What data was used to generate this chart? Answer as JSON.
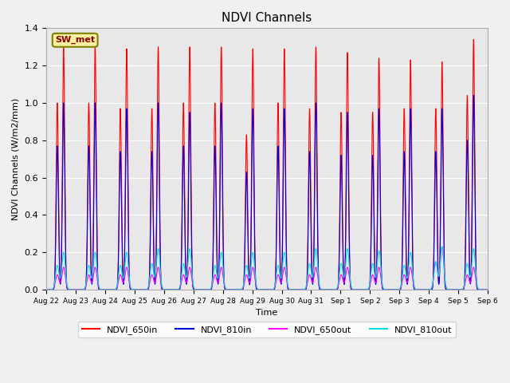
{
  "title": "NDVI Channels",
  "ylabel": "NDVI Channels (W/m2/mm)",
  "xlabel": "Time",
  "station_label": "SW_met",
  "ylim": [
    0,
    1.4
  ],
  "x_tick_labels": [
    "Aug 22",
    "Aug 23",
    "Aug 24",
    "Aug 25",
    "Aug 26",
    "Aug 27",
    "Aug 28",
    "Aug 29",
    "Aug 30",
    "Aug 31",
    "Sep 1",
    "Sep 2",
    "Sep 3",
    "Sep 4",
    "Sep 5",
    "Sep 6"
  ],
  "legend": [
    {
      "label": "NDVI_650in",
      "color": "#ff0000"
    },
    {
      "label": "NDVI_810in",
      "color": "#0000dd"
    },
    {
      "label": "NDVI_650out",
      "color": "#ff00ff"
    },
    {
      "label": "NDVI_810out",
      "color": "#00dddd"
    }
  ],
  "peaks_650in_am": [
    1.0,
    1.0,
    0.97,
    0.97,
    1.0,
    1.0,
    0.83,
    1.0,
    0.97,
    0.95,
    0.95,
    0.97,
    0.97,
    1.04
  ],
  "peaks_650in_pm": [
    1.31,
    1.31,
    1.29,
    1.3,
    1.3,
    1.3,
    1.29,
    1.29,
    1.3,
    1.27,
    1.24,
    1.23,
    1.22,
    1.34
  ],
  "peaks_810in_am": [
    0.77,
    0.77,
    0.74,
    0.74,
    0.77,
    0.77,
    0.63,
    0.77,
    0.74,
    0.72,
    0.72,
    0.74,
    0.74,
    0.8
  ],
  "peaks_810in_pm": [
    1.0,
    1.0,
    0.97,
    1.0,
    0.95,
    1.0,
    0.97,
    0.97,
    1.0,
    0.95,
    0.97,
    0.97,
    0.97,
    1.04
  ],
  "peaks_650out_am": [
    0.08,
    0.08,
    0.08,
    0.08,
    0.08,
    0.08,
    0.08,
    0.08,
    0.08,
    0.08,
    0.08,
    0.08,
    0.15,
    0.08
  ],
  "peaks_650out_pm": [
    0.12,
    0.12,
    0.12,
    0.12,
    0.12,
    0.12,
    0.12,
    0.12,
    0.12,
    0.12,
    0.12,
    0.12,
    0.23,
    0.12
  ],
  "peaks_810out_am": [
    0.13,
    0.13,
    0.13,
    0.14,
    0.14,
    0.13,
    0.13,
    0.13,
    0.14,
    0.14,
    0.14,
    0.13,
    0.15,
    0.14
  ],
  "peaks_810out_pm": [
    0.2,
    0.2,
    0.2,
    0.22,
    0.22,
    0.2,
    0.2,
    0.2,
    0.22,
    0.22,
    0.21,
    0.2,
    0.23,
    0.22
  ],
  "plot_bg_color": "#e8e8e8",
  "fig_bg_color": "#f0f0f0"
}
